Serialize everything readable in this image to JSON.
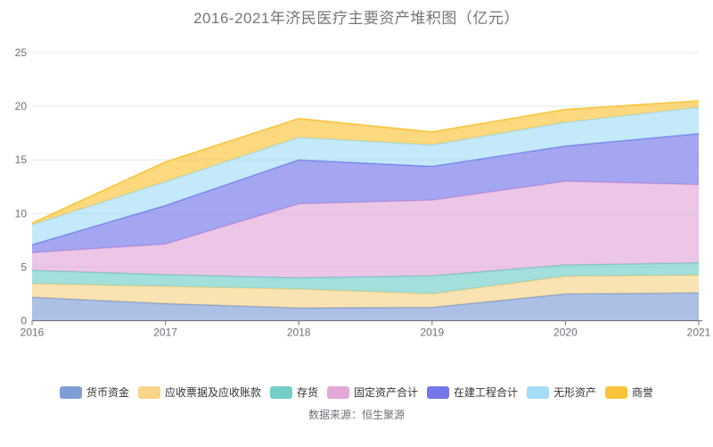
{
  "title": "2016-2021年济民医疗主要资产堆积图（亿元）",
  "source": "数据来源：恒生聚源",
  "chart_data": {
    "type": "area",
    "stacked": true,
    "title": "2016-2021年济民医疗主要资产堆积图（亿元）",
    "x": [
      "2016",
      "2017",
      "2018",
      "2019",
      "2020",
      "2021"
    ],
    "xlabel": "",
    "ylabel": "",
    "ylim": [
      0,
      25
    ],
    "yticks": [
      0,
      5,
      10,
      15,
      20,
      25
    ],
    "grid": true,
    "legend_position": "bottom",
    "series": [
      {
        "name": "货币资金",
        "color": "#7E9ED5",
        "values": [
          2.2,
          1.6,
          1.2,
          1.25,
          2.5,
          2.6
        ]
      },
      {
        "name": "应收票据及应收账款",
        "color": "#F8D489",
        "values": [
          1.25,
          1.6,
          1.75,
          1.25,
          1.65,
          1.65
        ]
      },
      {
        "name": "存货",
        "color": "#72CEC7",
        "values": [
          1.25,
          1.1,
          1.05,
          1.7,
          1.05,
          1.15
        ]
      },
      {
        "name": "固定资产合计",
        "color": "#E2A8D8",
        "values": [
          1.65,
          2.85,
          6.9,
          7.05,
          7.8,
          7.3
        ]
      },
      {
        "name": "在建工程合计",
        "color": "#7377E9",
        "values": [
          0.75,
          3.6,
          4.1,
          3.15,
          3.3,
          4.75
        ]
      },
      {
        "name": "无形资产",
        "color": "#A5DDF8",
        "values": [
          1.85,
          2.2,
          2.1,
          2.0,
          2.2,
          2.45
        ]
      },
      {
        "name": "商誉",
        "color": "#FBC43A",
        "values": [
          0.15,
          1.85,
          1.75,
          1.2,
          1.2,
          0.6
        ]
      }
    ],
    "colors": {
      "grid_line": "#E0E6F1",
      "axis_line": "#6E7079",
      "axis_label": "#6E7079",
      "area_opacity": 0.65
    }
  }
}
